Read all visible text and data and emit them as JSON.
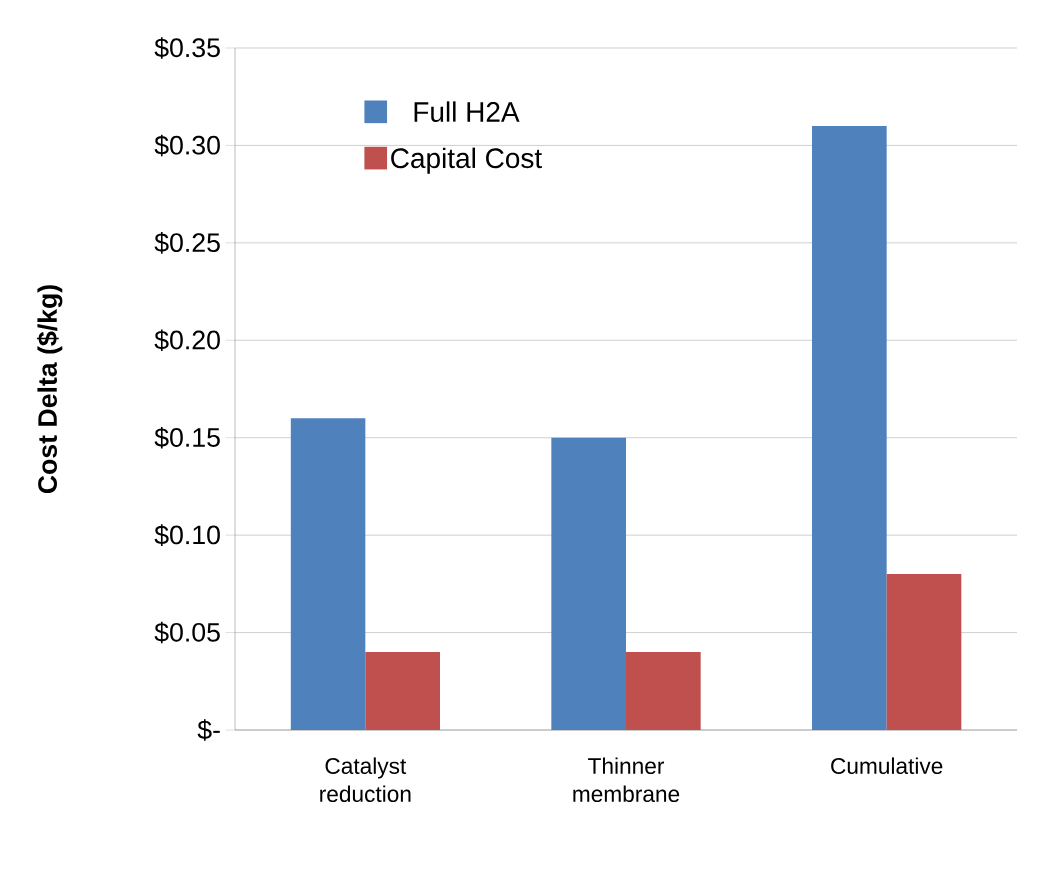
{
  "chart_data": {
    "type": "bar",
    "categories": [
      "Catalyst reduction",
      "Thinner membrane",
      "Cumulative"
    ],
    "series": [
      {
        "name": "Full H2A",
        "color": "#4f81bd",
        "values": [
          0.16,
          0.15,
          0.31
        ]
      },
      {
        "name": "Capital Cost",
        "color": "#c0504d",
        "values": [
          0.04,
          0.04,
          0.08
        ]
      }
    ],
    "ylabel": "Cost Delta ($/kg)",
    "ylim": [
      0,
      0.35
    ],
    "yticks": [
      {
        "value": 0,
        "label": "$-"
      },
      {
        "value": 0.05,
        "label": "$0.05"
      },
      {
        "value": 0.1,
        "label": "$0.10"
      },
      {
        "value": 0.15,
        "label": "$0.15"
      },
      {
        "value": 0.2,
        "label": "$0.20"
      },
      {
        "value": 0.25,
        "label": "$0.25"
      },
      {
        "value": 0.3,
        "label": "$0.30"
      },
      {
        "value": 0.35,
        "label": "$0.35"
      }
    ],
    "grid": "y",
    "legend": "top left"
  }
}
